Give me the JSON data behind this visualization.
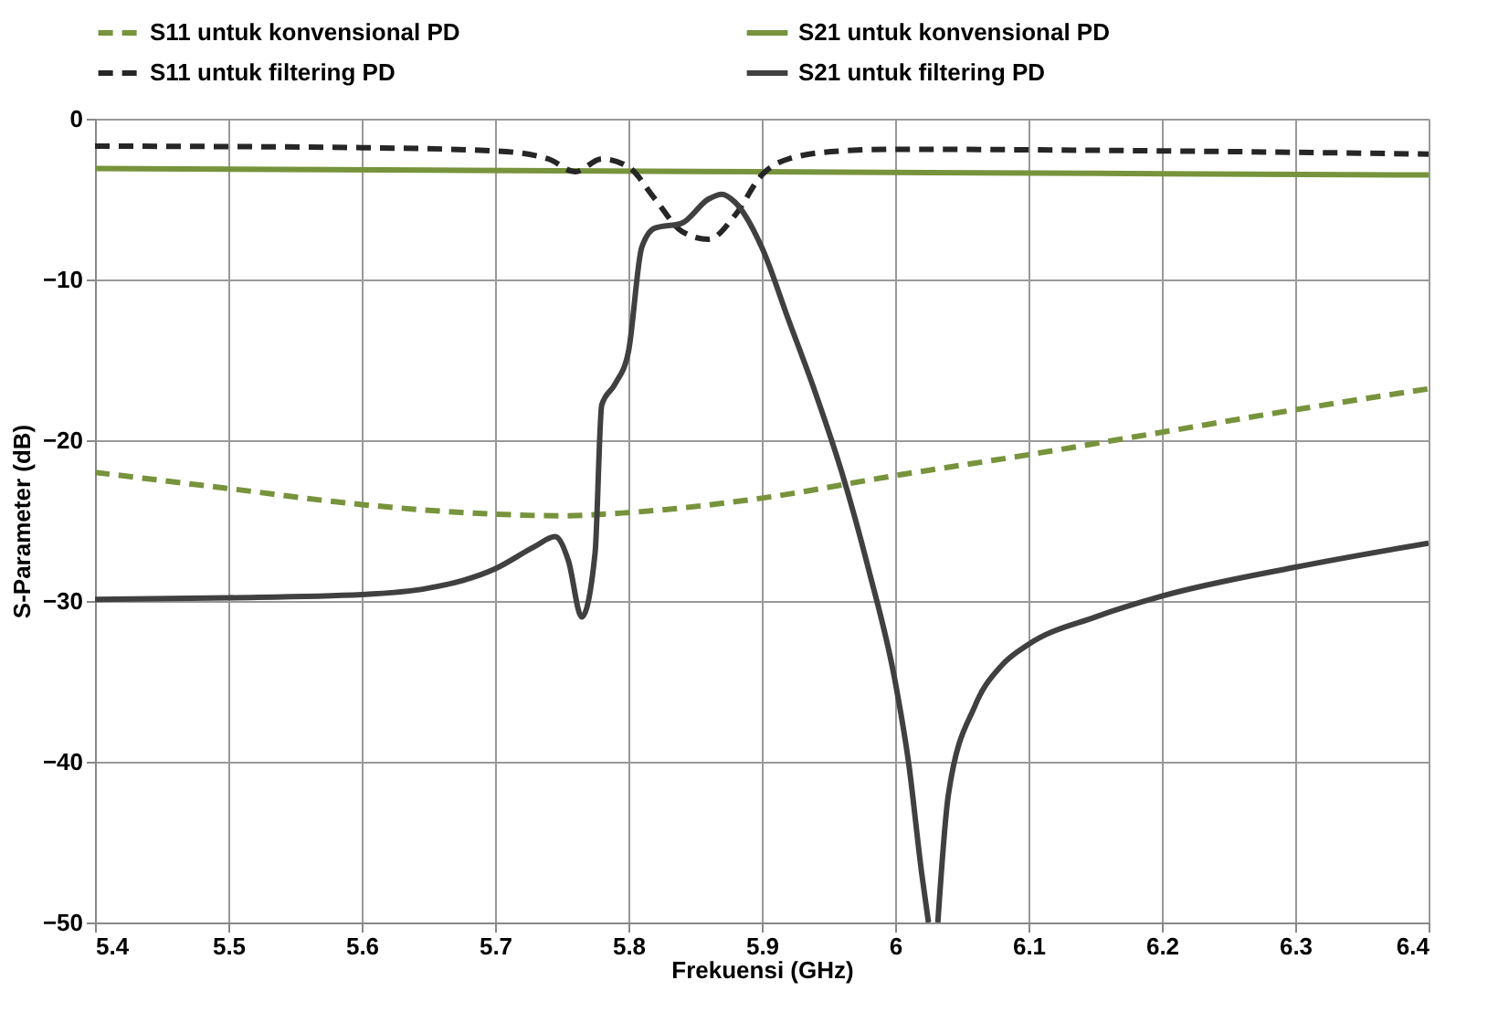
{
  "chart_data": {
    "type": "line",
    "xlabel": "Frekuensi (GHz)",
    "ylabel": "S-Parameter (dB)",
    "xlim": [
      5.4,
      6.4
    ],
    "xticks": [
      5.4,
      5.5,
      5.6,
      5.7,
      5.8,
      5.9,
      6,
      6.1,
      6.2,
      6.3,
      6.4
    ],
    "ylim": [
      -50,
      0
    ],
    "yticks": [
      -50,
      -40,
      -30,
      -20,
      -10,
      0
    ],
    "grid": true,
    "legend": "top",
    "marker": "none",
    "series": [
      {
        "name": "S11 untuk konvensional PD",
        "color": "#77933c",
        "line_style": "dashed",
        "x": [
          5.4,
          5.5,
          5.6,
          5.7,
          5.75,
          5.8,
          5.9,
          6.0,
          6.1,
          6.2,
          6.3,
          6.4
        ],
        "values": [
          -22.0,
          -23.0,
          -24.0,
          -24.6,
          -24.7,
          -24.5,
          -23.6,
          -22.2,
          -20.9,
          -19.5,
          -18.1,
          -16.8
        ]
      },
      {
        "name": "S21 untuk konvensional PD",
        "color": "#77933c",
        "line_style": "solid",
        "x": [
          5.4,
          5.9,
          6.4
        ],
        "values": [
          -3.1,
          -3.3,
          -3.5
        ]
      },
      {
        "name": "S11 untuk filtering PD",
        "color": "#262626",
        "line_style": "dashed",
        "x": [
          5.4,
          5.6,
          5.7,
          5.74,
          5.76,
          5.78,
          5.8,
          5.82,
          5.84,
          5.86,
          5.88,
          5.9,
          5.92,
          5.96,
          6.0,
          6.2,
          6.4
        ],
        "values": [
          -1.7,
          -1.8,
          -2.0,
          -2.5,
          -3.3,
          -2.5,
          -3.0,
          -5.0,
          -7.0,
          -7.5,
          -6.0,
          -3.5,
          -2.5,
          -2.0,
          -1.9,
          -2.0,
          -2.2
        ]
      },
      {
        "name": "S21 untuk filtering PD",
        "color": "#404040",
        "line_style": "solid",
        "x": [
          5.4,
          5.5,
          5.6,
          5.65,
          5.7,
          5.73,
          5.745,
          5.755,
          5.765,
          5.775,
          5.78,
          5.79,
          5.8,
          5.81,
          5.82,
          5.84,
          5.86,
          5.87,
          5.88,
          5.9,
          5.92,
          5.94,
          5.96,
          5.98,
          6.0,
          6.01,
          6.02,
          6.025,
          6.028,
          6.032,
          6.04,
          6.06,
          6.08,
          6.1,
          6.15,
          6.2,
          6.3,
          6.4
        ],
        "values": [
          -29.9,
          -29.8,
          -29.6,
          -29.2,
          -28.0,
          -26.6,
          -26.0,
          -27.5,
          -31.0,
          -27.0,
          -17.8,
          -16.5,
          -14.5,
          -8.0,
          -6.8,
          -6.5,
          -5.0,
          -4.7,
          -5.2,
          -8.0,
          -12.5,
          -17.0,
          -22.0,
          -28.0,
          -35.0,
          -40.0,
          -47.0,
          -50.0,
          null,
          -50.0,
          -42.0,
          -36.5,
          -34.0,
          -32.7,
          -31.0,
          -29.7,
          -27.9,
          -26.4
        ]
      }
    ]
  }
}
